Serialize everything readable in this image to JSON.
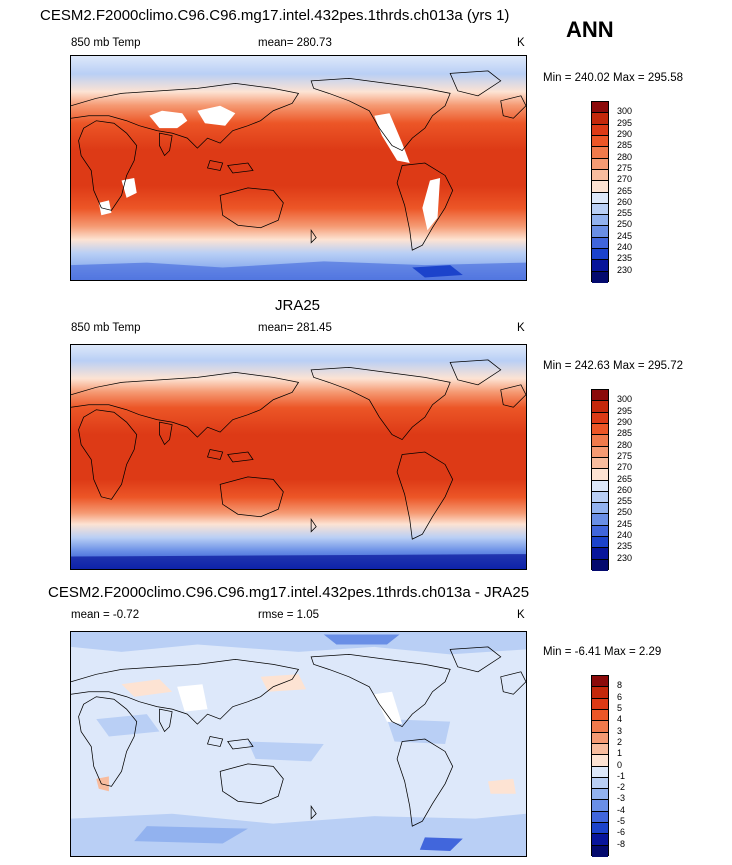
{
  "season": "ANN",
  "panels": [
    {
      "title": "CESM2.F2000climo.C96.C96.mg17.intel.432pes.1thrds.ch013a (yrs 1)",
      "left_label": "850 mb Temp",
      "center_label": "mean= 280.73",
      "right_label": "K",
      "minmax": "Min = 240.02 Max = 295.58",
      "levels": [
        "300",
        "295",
        "290",
        "285",
        "280",
        "275",
        "270",
        "265",
        "260",
        "255",
        "250",
        "245",
        "240",
        "235",
        "230"
      ],
      "colors": [
        "#8b0a0a",
        "#c4280b",
        "#dd3a16",
        "#ec5627",
        "#f07a4c",
        "#f59a73",
        "#f8bc9e",
        "#fde3d3",
        "#dde8fa",
        "#b9cff5",
        "#92b2ef",
        "#6a8fe6",
        "#4166dc",
        "#1c43cb",
        "#08159a",
        "#040a6e"
      ]
    },
    {
      "title": "JRA25",
      "left_label": "850 mb Temp",
      "center_label": "mean= 281.45",
      "right_label": "K",
      "minmax": "Min = 242.63 Max = 295.72",
      "levels": [
        "300",
        "295",
        "290",
        "285",
        "280",
        "275",
        "270",
        "265",
        "260",
        "255",
        "250",
        "245",
        "240",
        "235",
        "230"
      ],
      "colors": [
        "#8b0a0a",
        "#c4280b",
        "#dd3a16",
        "#ec5627",
        "#f07a4c",
        "#f59a73",
        "#f8bc9e",
        "#fde3d3",
        "#dde8fa",
        "#b9cff5",
        "#92b2ef",
        "#6a8fe6",
        "#4166dc",
        "#1c43cb",
        "#08159a",
        "#040a6e"
      ]
    },
    {
      "title": "CESM2.F2000climo.C96.C96.mg17.intel.432pes.1thrds.ch013a - JRA25",
      "left_label": "mean = -0.72",
      "center_label": "rmse =   1.05",
      "right_label": "K",
      "minmax": "Min =  -6.41 Max =   2.29",
      "levels": [
        "8",
        "6",
        "5",
        "4",
        "3",
        "2",
        "1",
        "0",
        "-1",
        "-2",
        "-3",
        "-4",
        "-5",
        "-6",
        "-8"
      ],
      "colors": [
        "#8b0a0a",
        "#c4280b",
        "#dd3a16",
        "#ec5627",
        "#f07a4c",
        "#f59a73",
        "#f8bc9e",
        "#fde3d3",
        "#dde8fa",
        "#b9cff5",
        "#92b2ef",
        "#6a8fe6",
        "#4166dc",
        "#1c43cb",
        "#08159a",
        "#040a6e"
      ]
    }
  ]
}
